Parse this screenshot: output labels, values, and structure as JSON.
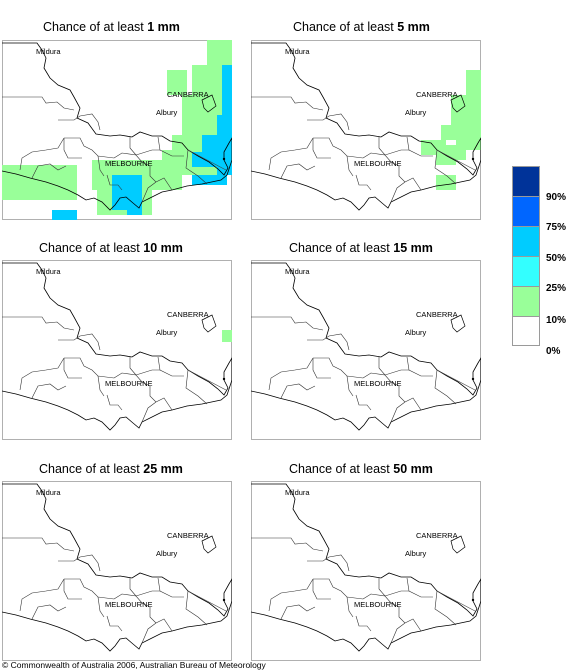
{
  "panels": [
    {
      "prefix": "Chance of at least",
      "amount": "1 mm",
      "places": {
        "north": "Mildura",
        "capital": "CANBERRA",
        "town": "Albury",
        "city": "MELBOURNE"
      },
      "cells": [
        {
          "lvl": 1,
          "r": [
            [
              205,
              0,
              25,
              50
            ],
            [
              190,
              25,
              40,
              55
            ],
            [
              180,
              55,
              50,
              45
            ],
            [
              170,
              95,
              60,
              40
            ],
            [
              160,
              110,
              30,
              20
            ],
            [
              90,
              120,
              90,
              30
            ],
            [
              95,
              150,
              55,
              25
            ],
            [
              0,
              125,
              75,
              30
            ],
            [
              0,
              150,
              75,
              10
            ],
            [
              165,
              30,
              20,
              25
            ]
          ]
        },
        {
          "lvl": 3,
          "r": [
            [
              220,
              25,
              10,
              80
            ],
            [
              215,
              75,
              15,
              45
            ],
            [
              200,
              95,
              25,
              20
            ],
            [
              190,
              112,
              25,
              15
            ],
            [
              215,
              120,
              15,
              15
            ],
            [
              190,
              135,
              35,
              10
            ],
            [
              110,
              135,
              30,
              35
            ],
            [
              125,
              155,
              15,
              20
            ],
            [
              50,
              170,
              25,
              15
            ]
          ]
        }
      ]
    },
    {
      "prefix": "Chance of at least",
      "amount": "5 mm",
      "places": {
        "north": "Mildura",
        "capital": "CANBERRA",
        "town": "Albury",
        "city": "MELBOURNE"
      },
      "cells": [
        {
          "lvl": 1,
          "r": [
            [
              215,
              30,
              15,
              35
            ],
            [
              200,
              55,
              30,
              30
            ],
            [
              205,
              80,
              25,
              30
            ],
            [
              190,
              85,
              20,
              15
            ],
            [
              185,
              105,
              20,
              20
            ],
            [
              190,
              110,
              25,
              10
            ],
            [
              170,
              100,
              25,
              15
            ],
            [
              185,
              135,
              20,
              15
            ]
          ]
        }
      ]
    },
    {
      "prefix": "Chance of at least",
      "amount": "10 mm",
      "places": {
        "north": "Mildura",
        "capital": "CANBERRA",
        "town": "Albury",
        "city": "MELBOURNE"
      },
      "cells": [
        {
          "lvl": 1,
          "r": [
            [
              220,
              70,
              10,
              12
            ]
          ]
        }
      ]
    },
    {
      "prefix": "Chance of at least",
      "amount": "15 mm",
      "places": {
        "north": "Mildura",
        "capital": "CANBERRA",
        "town": "Albury",
        "city": "MELBOURNE"
      },
      "cells": []
    },
    {
      "prefix": "Chance of at least",
      "amount": "25 mm",
      "places": {
        "north": "Mildura",
        "capital": "CANBERRA",
        "town": "Albury",
        "city": "MELBOURNE"
      },
      "cells": []
    },
    {
      "prefix": "Chance of at least",
      "amount": "50 mm",
      "places": {
        "north": "Mildura",
        "capital": "CANBERRA",
        "town": "Albury",
        "city": "MELBOURNE"
      },
      "cells": []
    }
  ],
  "legend": {
    "levels": [
      {
        "label": "90%",
        "color": "#003399"
      },
      {
        "label": "75%",
        "color": "#0066ff"
      },
      {
        "label": "50%",
        "color": "#00ccff"
      },
      {
        "label": "25%",
        "color": "#33ffff"
      },
      {
        "label": "10%",
        "color": "#99ff99"
      },
      {
        "label": "0%",
        "color": "#ffffff"
      }
    ]
  },
  "colors": {
    "cell_levels": [
      "#ffffff",
      "#99ff99",
      "#33ffff",
      "#00ccff",
      "#0066ff",
      "#003399"
    ],
    "boundary": "#000000",
    "frame": "#b0b0b0"
  },
  "copyright": "© Commonwealth of Australia 2006, Australian Bureau of Meteorology"
}
